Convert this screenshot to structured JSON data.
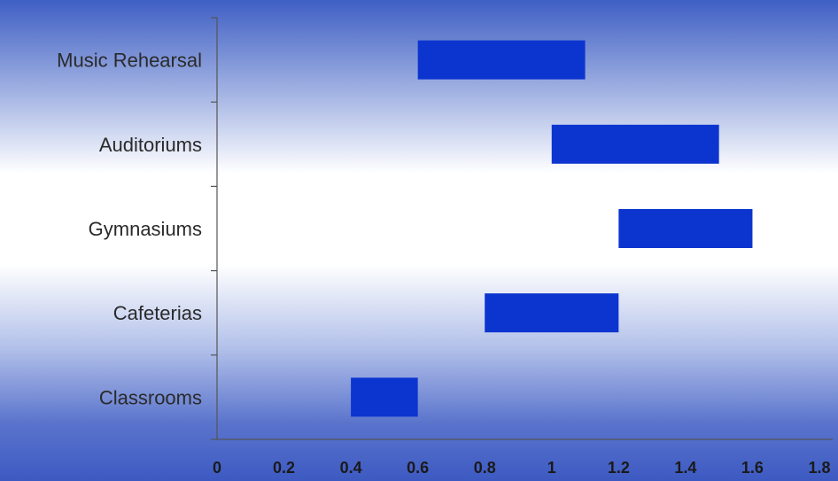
{
  "chart_data": {
    "type": "bar",
    "orientation": "horizontal-floating",
    "title": "",
    "xlabel": "",
    "ylabel": "",
    "categories": [
      "Music Rehearsal",
      "Auditoriums",
      "Gymnasiums",
      "Cafeterias",
      "Classrooms"
    ],
    "series": [
      {
        "ranges": [
          [
            0.6,
            1.1
          ],
          [
            1.0,
            1.5
          ],
          [
            1.2,
            1.6
          ],
          [
            0.8,
            1.2
          ],
          [
            0.4,
            0.6
          ]
        ]
      }
    ],
    "xlim": [
      0,
      1.8
    ],
    "x_ticks": [
      "0",
      "0.2",
      "0.4",
      "0.6",
      "0.8",
      "1",
      "1.2",
      "1.4",
      "1.6",
      "1.8"
    ],
    "grid": false,
    "legend": "none",
    "colors": {
      "bar": "#0c35cf",
      "background_edge": "#3f5fbf",
      "background_center": "#ffffff",
      "axis": "#555555"
    }
  }
}
